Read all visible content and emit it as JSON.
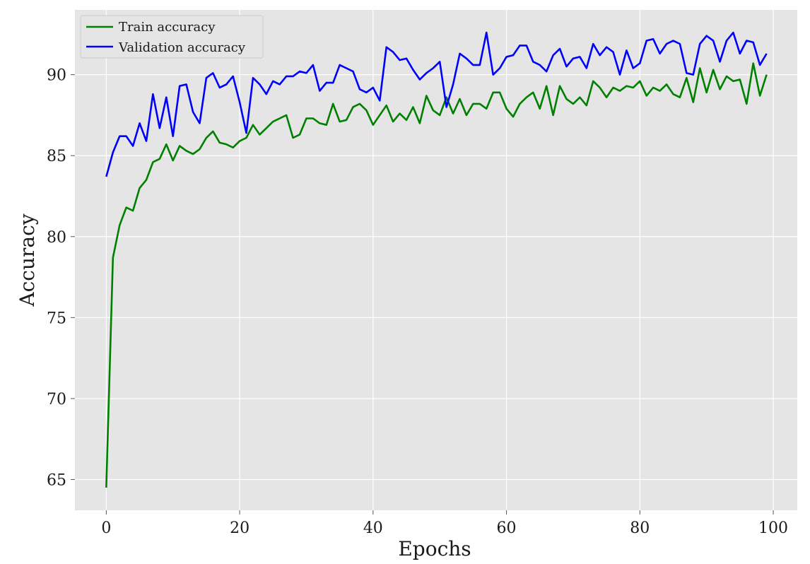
{
  "chart_data": {
    "type": "line",
    "xlabel": "Epochs",
    "ylabel": "Accuracy",
    "xlim": [
      -4.7,
      103.6
    ],
    "ylim": [
      63.1,
      94.0
    ],
    "xticks": [
      0,
      20,
      40,
      60,
      80,
      100
    ],
    "yticks": [
      65,
      70,
      75,
      80,
      85,
      90
    ],
    "grid": true,
    "legend_position": "top-left",
    "background": "#e5e5e5",
    "series": [
      {
        "name": "Train accuracy",
        "color": "#008000",
        "x": [
          0,
          1,
          2,
          3,
          4,
          5,
          6,
          7,
          8,
          9,
          10,
          11,
          12,
          13,
          14,
          15,
          16,
          17,
          18,
          19,
          20,
          21,
          22,
          23,
          24,
          25,
          26,
          27,
          28,
          29,
          30,
          31,
          32,
          33,
          34,
          35,
          36,
          37,
          38,
          39,
          40,
          41,
          42,
          43,
          44,
          45,
          46,
          47,
          48,
          49,
          50,
          51,
          52,
          53,
          54,
          55,
          56,
          57,
          58,
          59,
          60,
          61,
          62,
          63,
          64,
          65,
          66,
          67,
          68,
          69,
          70,
          71,
          72,
          73,
          74,
          75,
          76,
          77,
          78,
          79,
          80,
          81,
          82,
          83,
          84,
          85,
          86,
          87,
          88,
          89,
          90,
          91,
          92,
          93,
          94,
          95,
          96,
          97,
          98,
          99
        ],
        "values": [
          64.5,
          78.7,
          80.7,
          81.8,
          81.6,
          83.0,
          83.5,
          84.6,
          84.8,
          85.7,
          84.7,
          85.6,
          85.3,
          85.1,
          85.4,
          86.1,
          86.5,
          85.8,
          85.7,
          85.5,
          85.9,
          86.1,
          86.9,
          86.3,
          86.7,
          87.1,
          87.3,
          87.5,
          86.1,
          86.3,
          87.3,
          87.3,
          87.0,
          86.9,
          88.2,
          87.1,
          87.2,
          88.0,
          88.2,
          87.8,
          86.9,
          87.5,
          88.1,
          87.1,
          87.6,
          87.2,
          88.0,
          87.0,
          88.7,
          87.8,
          87.5,
          88.6,
          87.6,
          88.5,
          87.5,
          88.2,
          88.2,
          87.9,
          88.9,
          88.9,
          87.9,
          87.4,
          88.2,
          88.6,
          88.9,
          87.9,
          89.3,
          87.5,
          89.3,
          88.5,
          88.2,
          88.6,
          88.1,
          89.6,
          89.2,
          88.6,
          89.2,
          89.0,
          89.3,
          89.2,
          89.6,
          88.7,
          89.2,
          89.0,
          89.4,
          88.8,
          88.6,
          89.8,
          88.3,
          90.4,
          88.9,
          90.3,
          89.1,
          89.9,
          89.6,
          89.7,
          88.2,
          90.7,
          88.7,
          90.0
        ]
      },
      {
        "name": "Validation accuracy",
        "color": "#0000ff",
        "x": [
          0,
          1,
          2,
          3,
          4,
          5,
          6,
          7,
          8,
          9,
          10,
          11,
          12,
          13,
          14,
          15,
          16,
          17,
          18,
          19,
          20,
          21,
          22,
          23,
          24,
          25,
          26,
          27,
          28,
          29,
          30,
          31,
          32,
          33,
          34,
          35,
          36,
          37,
          38,
          39,
          40,
          41,
          42,
          43,
          44,
          45,
          46,
          47,
          48,
          49,
          50,
          51,
          52,
          53,
          54,
          55,
          56,
          57,
          58,
          59,
          60,
          61,
          62,
          63,
          64,
          65,
          66,
          67,
          68,
          69,
          70,
          71,
          72,
          73,
          74,
          75,
          76,
          77,
          78,
          79,
          80,
          81,
          82,
          83,
          84,
          85,
          86,
          87,
          88,
          89,
          90,
          91,
          92,
          93,
          94,
          95,
          96,
          97,
          98,
          99
        ],
        "values": [
          83.7,
          85.2,
          86.2,
          86.2,
          85.6,
          87.0,
          85.9,
          88.8,
          86.7,
          88.6,
          86.2,
          89.3,
          89.4,
          87.7,
          87.0,
          89.8,
          90.1,
          89.2,
          89.4,
          89.9,
          88.3,
          86.4,
          89.8,
          89.4,
          88.8,
          89.6,
          89.4,
          89.9,
          89.9,
          90.2,
          90.1,
          90.6,
          89.0,
          89.5,
          89.5,
          90.6,
          90.4,
          90.2,
          89.1,
          88.9,
          89.2,
          88.4,
          91.7,
          91.4,
          90.9,
          91.0,
          90.3,
          89.7,
          90.1,
          90.4,
          90.8,
          88.0,
          89.4,
          91.3,
          91.0,
          90.6,
          90.6,
          92.6,
          90.0,
          90.4,
          91.1,
          91.2,
          91.8,
          91.8,
          90.8,
          90.6,
          90.2,
          91.2,
          91.6,
          90.5,
          91.0,
          91.1,
          90.4,
          91.9,
          91.2,
          91.7,
          91.4,
          90.0,
          91.5,
          90.4,
          90.7,
          92.1,
          92.2,
          91.3,
          91.9,
          92.1,
          91.9,
          90.1,
          90.0,
          91.9,
          92.4,
          92.1,
          90.8,
          92.1,
          92.6,
          91.3,
          92.1,
          92.0,
          90.6,
          91.3
        ]
      }
    ]
  }
}
